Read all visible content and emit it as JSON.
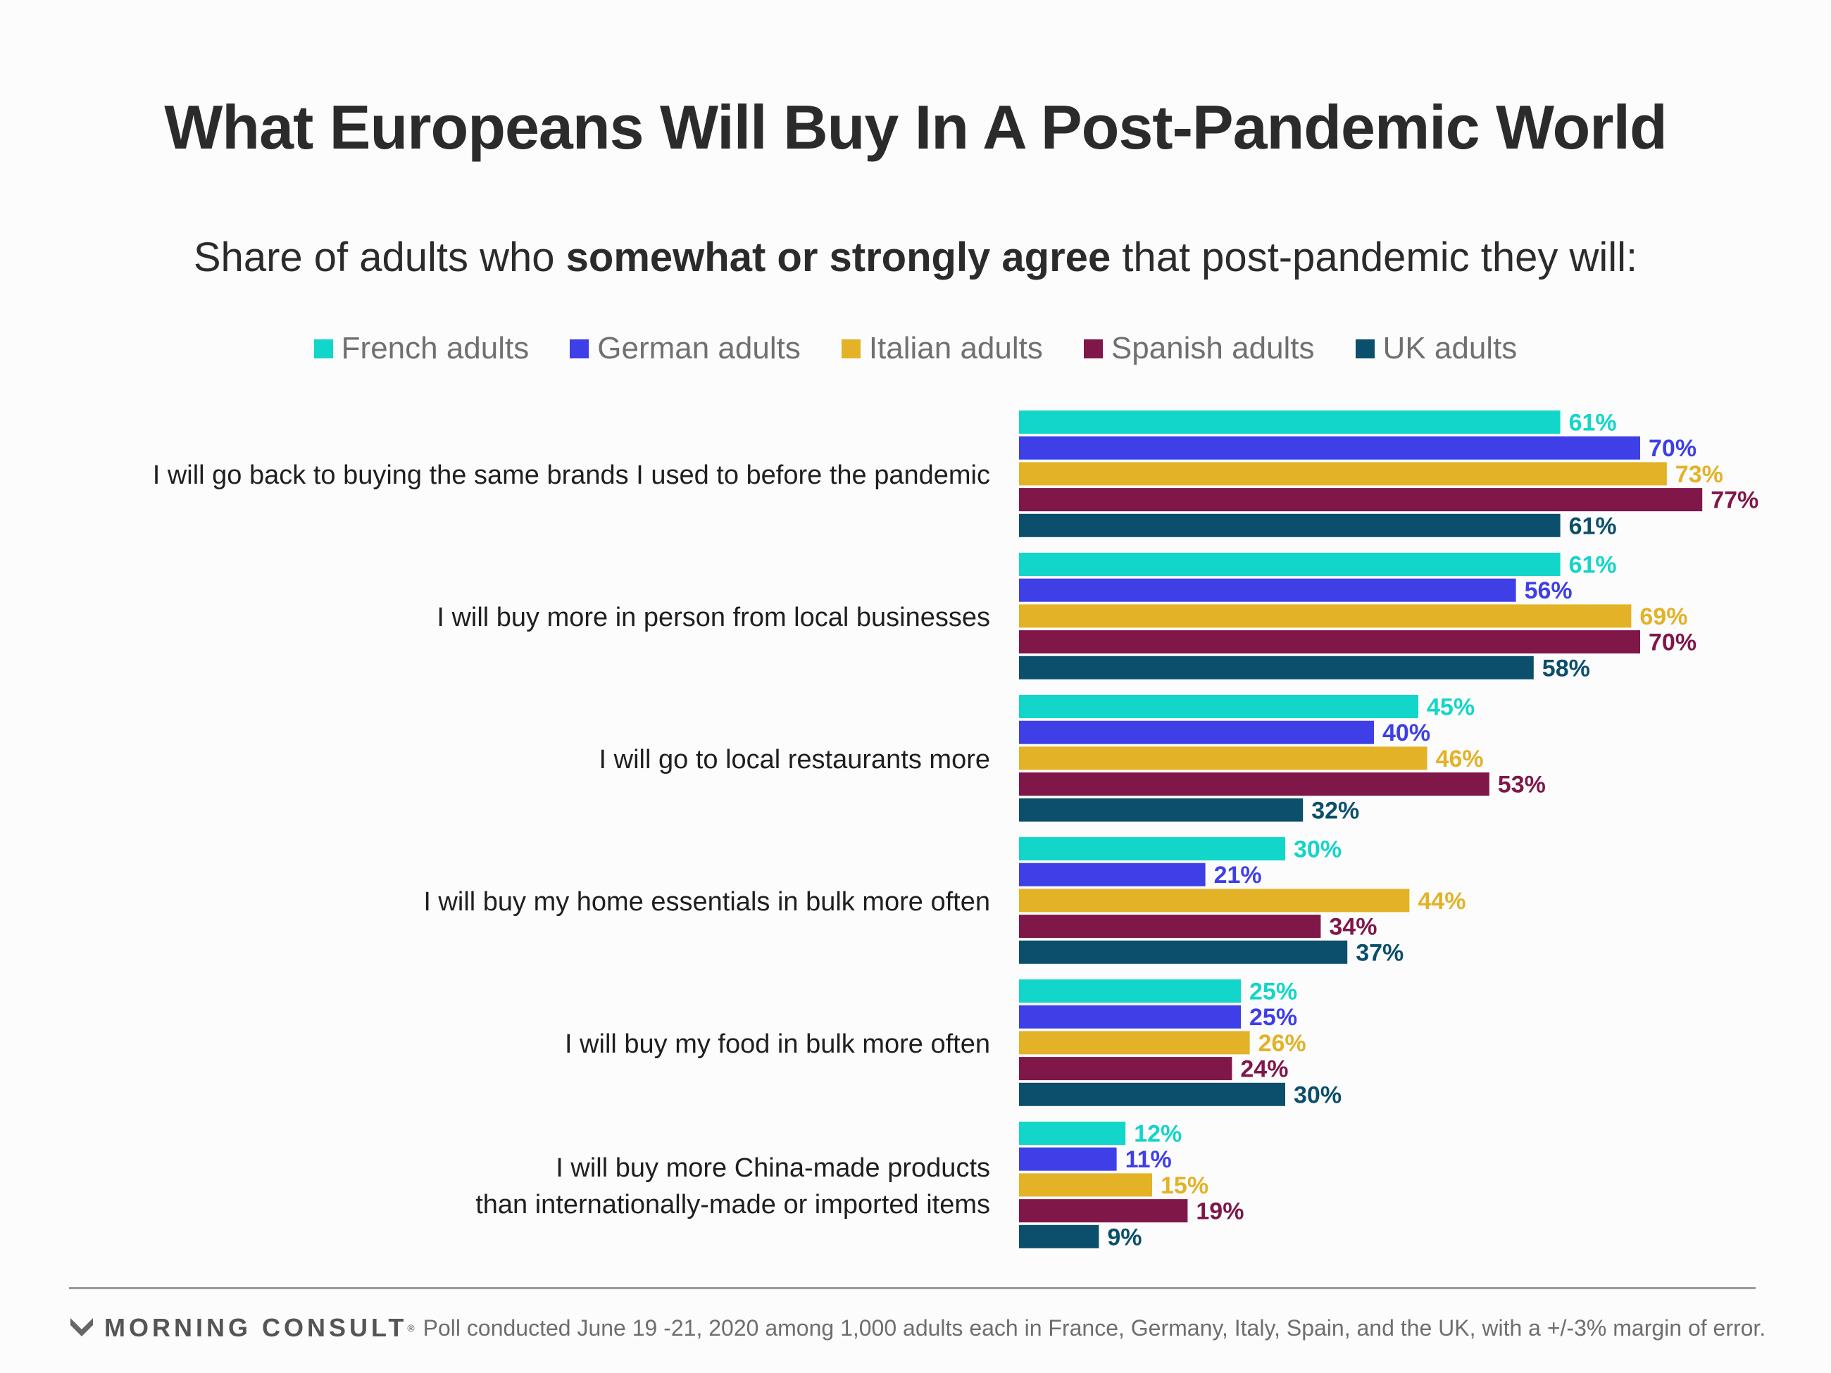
{
  "header": {
    "title": "What Europeans Will Buy In A Post-Pandemic World",
    "subtitle_pre": "Share of adults who ",
    "subtitle_bold": "somewhat or strongly agree",
    "subtitle_post": " that post-pandemic they will:"
  },
  "footer": {
    "brand": "MORNING CONSULT",
    "brand_mark": "®",
    "source": "Poll conducted June 19 -21, 2020 among 1,000 adults each in France, Germany, Italy, Spain, and the UK, with a +/-3% margin of error."
  },
  "chart_data": {
    "type": "bar",
    "orientation": "horizontal",
    "legend_position": "top-center",
    "grid": false,
    "value_suffix": "%",
    "xlim": [
      0,
      100
    ],
    "categories": [
      [
        "I will go back to buying the same brands I used to before the pandemic"
      ],
      [
        "I will buy more in person from local businesses"
      ],
      [
        "I will go to local restaurants more"
      ],
      [
        "I will buy my home essentials in bulk more often"
      ],
      [
        "I will buy my food in bulk more often"
      ],
      [
        "I will buy more China-made products",
        "than internationally-made or imported items"
      ]
    ],
    "series": [
      {
        "name": "French adults",
        "color": "#12d6c9",
        "values": [
          61,
          61,
          45,
          30,
          25,
          12
        ]
      },
      {
        "name": "German adults",
        "color": "#3f3fe8",
        "values": [
          70,
          56,
          40,
          21,
          25,
          11
        ]
      },
      {
        "name": "Italian adults",
        "color": "#e3b227",
        "values": [
          73,
          69,
          46,
          44,
          26,
          15
        ]
      },
      {
        "name": "Spanish adults",
        "color": "#7f1749",
        "values": [
          77,
          70,
          53,
          34,
          24,
          19
        ]
      },
      {
        "name": "UK adults",
        "color": "#0b4f6c",
        "values": [
          61,
          58,
          32,
          37,
          30,
          9
        ]
      }
    ]
  }
}
